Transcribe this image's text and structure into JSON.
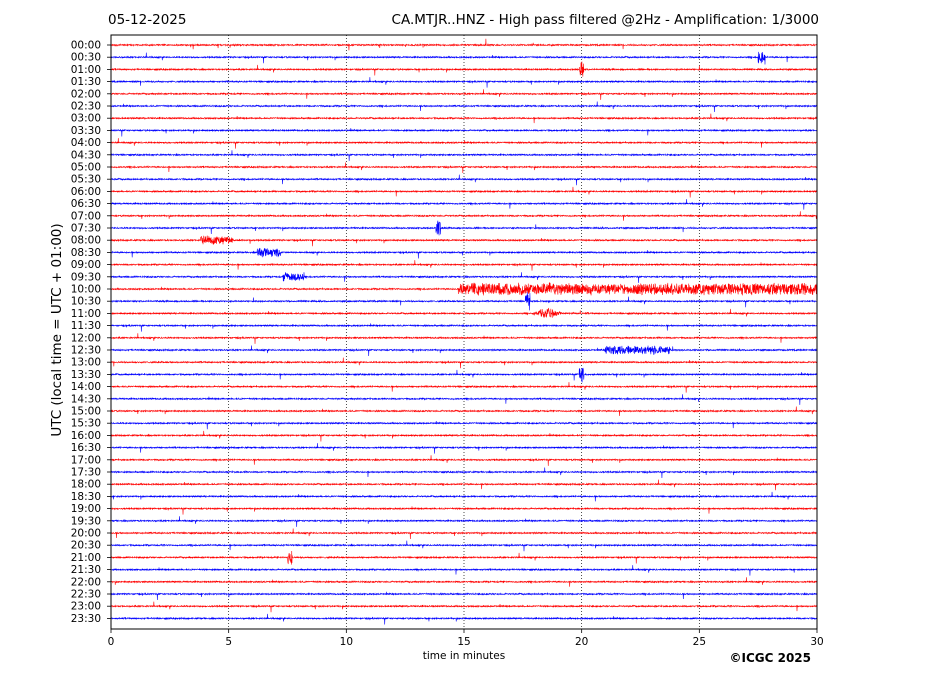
{
  "header": {
    "date": "05-12-2025",
    "title": "CA.MTJR..HNZ - High pass filtered @2Hz - Amplification: 1/3000"
  },
  "copyright": "©ICGC 2025",
  "chart_data": {
    "type": "line",
    "title": "CA.MTJR..HNZ - High pass filtered @2Hz - Amplification: 1/3000",
    "xlabel": "time in minutes",
    "ylabel": "UTC (local time = UTC + 01:00)",
    "xlim": [
      0,
      30
    ],
    "x_ticks": [
      0,
      5,
      10,
      15,
      20,
      25,
      30
    ],
    "grid": "vertical dotted lines at x = 5, 10, 15, 20, 25",
    "trace_colors": [
      "#ff0000",
      "#0000ff"
    ],
    "rows": [
      "00:00",
      "00:30",
      "01:00",
      "01:30",
      "02:00",
      "02:30",
      "03:00",
      "03:30",
      "04:00",
      "04:30",
      "05:00",
      "05:30",
      "06:00",
      "06:30",
      "07:00",
      "07:30",
      "08:00",
      "08:30",
      "09:00",
      "09:30",
      "10:00",
      "10:30",
      "11:00",
      "11:30",
      "12:00",
      "12:30",
      "13:00",
      "13:30",
      "14:00",
      "14:30",
      "15:00",
      "15:30",
      "16:00",
      "16:30",
      "17:00",
      "17:30",
      "18:00",
      "18:30",
      "19:00",
      "19:30",
      "20:00",
      "20:30",
      "21:00",
      "21:30",
      "22:00",
      "22:30",
      "23:00",
      "23:30"
    ],
    "events": [
      {
        "row": "10:00",
        "start_min": 14.8,
        "end_min": 30,
        "description": "sustained high-amplitude noise"
      },
      {
        "row": "11:00",
        "start_min": 17.8,
        "end_min": 19.3,
        "description": "strong burst"
      },
      {
        "row": "08:30",
        "start_min": 6.2,
        "end_min": 7.2,
        "description": "burst"
      },
      {
        "row": "09:30",
        "start_min": 7.3,
        "end_min": 8.2,
        "description": "burst"
      },
      {
        "row": "12:30",
        "start_min": 21.0,
        "end_min": 23.8,
        "description": "burst"
      },
      {
        "row": "08:00",
        "start_min": 3.8,
        "end_min": 5.2,
        "description": "burst"
      },
      {
        "row": "00:30",
        "start_min": 27.5,
        "end_min": 27.8,
        "description": "spike"
      },
      {
        "row": "01:00",
        "start_min": 19.9,
        "end_min": 20.1,
        "description": "spike"
      },
      {
        "row": "07:30",
        "start_min": 13.8,
        "end_min": 14.0,
        "description": "spike"
      },
      {
        "row": "10:30",
        "start_min": 17.6,
        "end_min": 17.8,
        "description": "spike"
      },
      {
        "row": "13:30",
        "start_min": 19.9,
        "end_min": 20.1,
        "description": "spike"
      },
      {
        "row": "21:00",
        "start_min": 7.5,
        "end_min": 7.7,
        "description": "spike"
      }
    ]
  }
}
